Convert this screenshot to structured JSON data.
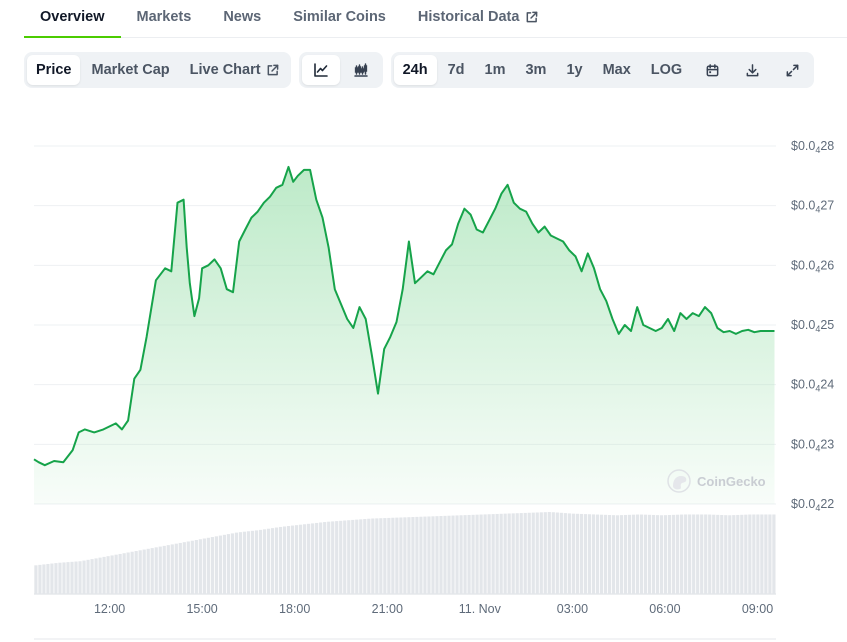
{
  "tabs": [
    {
      "label": "Overview",
      "active": true
    },
    {
      "label": "Markets",
      "active": false
    },
    {
      "label": "News",
      "active": false
    },
    {
      "label": "Similar Coins",
      "active": false
    },
    {
      "label": "Historical Data",
      "active": false,
      "external": true
    }
  ],
  "toolbar": {
    "metric_buttons": [
      {
        "label": "Price",
        "active": true
      },
      {
        "label": "Market Cap",
        "active": false
      },
      {
        "label": "Live Chart",
        "active": false,
        "external": true
      }
    ],
    "chart_type_buttons": [
      {
        "icon": "line-chart-icon",
        "active": true
      },
      {
        "icon": "candlestick-icon",
        "active": false
      }
    ],
    "range_buttons": [
      {
        "label": "24h",
        "active": true
      },
      {
        "label": "7d",
        "active": false
      },
      {
        "label": "1m",
        "active": false
      },
      {
        "label": "3m",
        "active": false
      },
      {
        "label": "1y",
        "active": false
      },
      {
        "label": "Max",
        "active": false
      },
      {
        "label": "LOG",
        "active": false
      }
    ],
    "action_icons": [
      "calendar-icon",
      "download-icon",
      "expand-icon"
    ]
  },
  "colors": {
    "line": "#16a34a",
    "area_top": "#a7e3b6",
    "volume_bar": "#e3e6ea",
    "active_tab": "#4bcc00"
  },
  "watermark": "CoinGecko",
  "chart_data": {
    "type": "area",
    "price_axis": {
      "ticks": [
        {
          "value": 28,
          "label_prefix": "$0.0",
          "subscript": "4",
          "label_suffix": "28"
        },
        {
          "value": 27,
          "label_prefix": "$0.0",
          "subscript": "4",
          "label_suffix": "27"
        },
        {
          "value": 26,
          "label_prefix": "$0.0",
          "subscript": "4",
          "label_suffix": "26"
        },
        {
          "value": 25,
          "label_prefix": "$0.0",
          "subscript": "4",
          "label_suffix": "25"
        },
        {
          "value": 24,
          "label_prefix": "$0.0",
          "subscript": "4",
          "label_suffix": "24"
        },
        {
          "value": 23,
          "label_prefix": "$0.0",
          "subscript": "4",
          "label_suffix": "23"
        },
        {
          "value": 22,
          "label_prefix": "$0.0",
          "subscript": "4",
          "label_suffix": "22"
        }
      ],
      "ylim": [
        22,
        28
      ],
      "unit_note": "values in units of $0.0000x (e.g. 25 = $0.000025)"
    },
    "x_axis": {
      "ticks": [
        "12:00",
        "15:00",
        "18:00",
        "21:00",
        "11. Nov",
        "03:00",
        "06:00",
        "09:00"
      ],
      "tick_hours": [
        12,
        15,
        18,
        21,
        24,
        27,
        30,
        33
      ],
      "xlim": [
        9.55,
        33.6
      ]
    },
    "grid": true,
    "price": {
      "x": [
        9.55,
        9.7,
        9.9,
        10.2,
        10.5,
        10.8,
        11.0,
        11.2,
        11.5,
        11.8,
        12.0,
        12.2,
        12.4,
        12.6,
        12.8,
        13.0,
        13.2,
        13.5,
        13.8,
        14.0,
        14.2,
        14.4,
        14.5,
        14.6,
        14.75,
        14.9,
        15.0,
        15.2,
        15.4,
        15.6,
        15.8,
        16.0,
        16.2,
        16.4,
        16.6,
        16.8,
        17.0,
        17.2,
        17.4,
        17.6,
        17.8,
        17.95,
        18.1,
        18.3,
        18.5,
        18.7,
        18.9,
        19.1,
        19.3,
        19.5,
        19.7,
        19.9,
        20.1,
        20.3,
        20.5,
        20.7,
        20.9,
        21.1,
        21.3,
        21.5,
        21.7,
        21.9,
        22.1,
        22.3,
        22.5,
        22.7,
        22.9,
        23.1,
        23.3,
        23.5,
        23.7,
        23.9,
        24.1,
        24.3,
        24.5,
        24.7,
        24.9,
        25.1,
        25.3,
        25.5,
        25.7,
        25.9,
        26.1,
        26.3,
        26.5,
        26.7,
        26.9,
        27.1,
        27.3,
        27.5,
        27.7,
        27.9,
        28.1,
        28.3,
        28.5,
        28.7,
        28.9,
        29.1,
        29.3,
        29.5,
        29.7,
        29.9,
        30.1,
        30.3,
        30.5,
        30.7,
        30.9,
        31.1,
        31.3,
        31.5,
        31.7,
        31.9,
        32.1,
        32.3,
        32.5,
        32.7,
        32.9,
        33.1,
        33.3,
        33.55
      ],
      "values": [
        22.75,
        22.7,
        22.65,
        22.72,
        22.7,
        22.9,
        23.2,
        23.25,
        23.2,
        23.25,
        23.3,
        23.35,
        23.25,
        23.4,
        24.1,
        24.25,
        24.8,
        25.75,
        25.95,
        25.9,
        27.05,
        27.1,
        26.3,
        25.7,
        25.15,
        25.45,
        25.95,
        26.0,
        26.1,
        25.95,
        25.6,
        25.55,
        26.4,
        26.6,
        26.8,
        26.9,
        27.05,
        27.15,
        27.3,
        27.35,
        27.65,
        27.4,
        27.5,
        27.6,
        27.6,
        27.1,
        26.8,
        26.3,
        25.6,
        25.35,
        25.1,
        24.95,
        25.3,
        25.1,
        24.5,
        23.85,
        24.6,
        24.8,
        25.05,
        25.6,
        26.4,
        25.7,
        25.8,
        25.9,
        25.85,
        26.05,
        26.25,
        26.35,
        26.7,
        26.95,
        26.85,
        26.6,
        26.55,
        26.75,
        26.95,
        27.2,
        27.35,
        27.05,
        26.95,
        26.9,
        26.7,
        26.55,
        26.65,
        26.5,
        26.45,
        26.4,
        26.25,
        26.15,
        25.9,
        26.2,
        25.95,
        25.6,
        25.4,
        25.1,
        24.85,
        25.0,
        24.9,
        25.3,
        25.0,
        24.95,
        24.9,
        24.95,
        25.1,
        24.9,
        25.2,
        25.1,
        25.2,
        25.15,
        25.3,
        25.2,
        24.95,
        24.88,
        24.9,
        24.85,
        24.9,
        24.92,
        24.88,
        24.9,
        24.9,
        24.9
      ]
    },
    "volume": {
      "relative": [
        0.35,
        0.38,
        0.4,
        0.45,
        0.5,
        0.55,
        0.6,
        0.65,
        0.7,
        0.75,
        0.78,
        0.82,
        0.85,
        0.88,
        0.9,
        0.92,
        0.93,
        0.94,
        0.95,
        0.96,
        0.97,
        0.98,
        0.99,
        1.0,
        0.98,
        0.97,
        0.96,
        0.97,
        0.96,
        0.97,
        0.97,
        0.96,
        0.97,
        0.97
      ]
    }
  }
}
